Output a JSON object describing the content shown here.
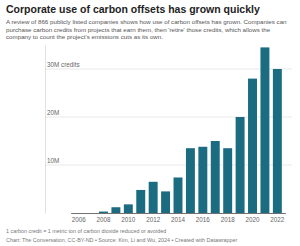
{
  "chart_data": {
    "type": "bar",
    "title": "Corporate use of carbon offsets has grown quickly",
    "subtitle": "A review of 866 publicly listed companies shows how use of carbon offsets has grown. Companies can purchase carbon credits from projects that earn them, then 'retire' those credits, which allows the company to count the project's emissions cuts as its own.",
    "categories": [
      "2006",
      null,
      "2008",
      null,
      "2010",
      null,
      "2012",
      null,
      "2014",
      null,
      "2016",
      null,
      "2018",
      null,
      "2020",
      null,
      "2022"
    ],
    "values": [
      0,
      0,
      0.3,
      1.2,
      1.8,
      4.8,
      6.5,
      4.5,
      7.4,
      13.5,
      13.8,
      15,
      13.5,
      20,
      28,
      34.5,
      30
    ],
    "color": "#1b6c80",
    "ylim": [
      0,
      35
    ],
    "yticks": [
      {
        "value": 10,
        "label": "10M"
      },
      {
        "value": 20,
        "label": "20M"
      },
      {
        "value": 30,
        "label": "30M credits"
      }
    ],
    "grid": true,
    "footnote": "1 carbon credit = 1 metric ton of carbon dioxide reduced or avoided",
    "source": "Chart: The Conversation, CC-BY-ND • Source: Kim, Li and Wu, 2024 • Created with Datawrapper"
  }
}
